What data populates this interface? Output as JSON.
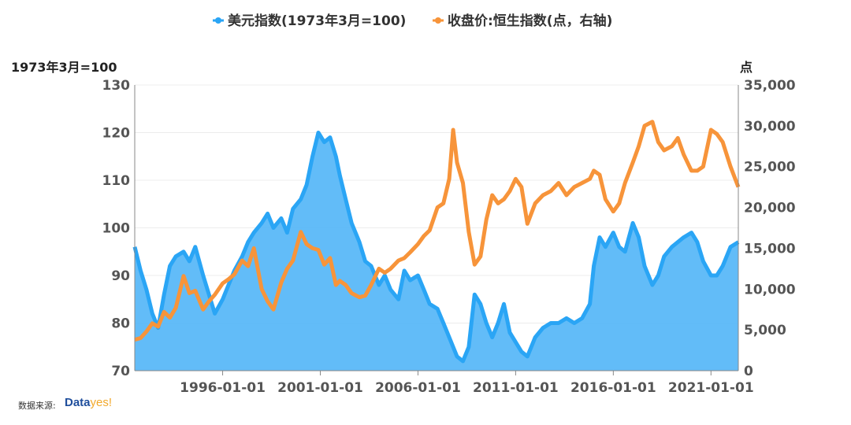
{
  "chart_data": {
    "type": "line",
    "legend": [
      {
        "name": "美元指数(1973年3月=100)",
        "color": "#2aa5f5",
        "axis": "left"
      },
      {
        "name": "收盘价:恒生指数(点，右轴)",
        "color": "#f7943a",
        "axis": "right"
      }
    ],
    "left_axis": {
      "unit": "1973年3月=100",
      "ylim": [
        70,
        130
      ],
      "ticks": [
        "70",
        "80",
        "90",
        "100",
        "110",
        "120",
        "130"
      ]
    },
    "right_axis": {
      "unit": "点",
      "ylim": [
        0,
        35000
      ],
      "ticks": [
        "0",
        "5,000",
        "10,000",
        "15,000",
        "20,000",
        "25,000",
        "30,000",
        "35,000"
      ]
    },
    "x_axis": {
      "range": [
        1991.5,
        2022.4
      ],
      "tick_labels": [
        "1996-01-01",
        "2001-01-01",
        "2006-01-01",
        "2011-01-01",
        "2016-01-01",
        "2021-01-01"
      ],
      "tick_years": [
        1996,
        2001,
        2006,
        2011,
        2016,
        2021
      ]
    },
    "series": [
      {
        "name": "美元指数(1973年3月=100)",
        "type": "area",
        "x": [
          1991.5,
          1991.8,
          1992.1,
          1992.4,
          1992.7,
          1993.0,
          1993.3,
          1993.6,
          1994.0,
          1994.3,
          1994.6,
          1995.0,
          1995.3,
          1995.6,
          1996.0,
          1996.3,
          1996.6,
          1997.0,
          1997.3,
          1997.6,
          1998.0,
          1998.3,
          1998.6,
          1999.0,
          1999.3,
          1999.6,
          2000.0,
          2000.3,
          2000.6,
          2000.9,
          2001.2,
          2001.5,
          2001.8,
          2002.0,
          2002.3,
          2002.6,
          2003.0,
          2003.3,
          2003.6,
          2004.0,
          2004.3,
          2004.6,
          2005.0,
          2005.3,
          2005.6,
          2006.0,
          2006.3,
          2006.6,
          2007.0,
          2007.3,
          2007.6,
          2008.0,
          2008.3,
          2008.6,
          2008.9,
          2009.2,
          2009.5,
          2009.8,
          2010.1,
          2010.4,
          2010.7,
          2011.0,
          2011.3,
          2011.6,
          2012.0,
          2012.4,
          2012.8,
          2013.2,
          2013.6,
          2014.0,
          2014.4,
          2014.8,
          2015.0,
          2015.3,
          2015.6,
          2016.0,
          2016.3,
          2016.6,
          2017.0,
          2017.3,
          2017.6,
          2018.0,
          2018.3,
          2018.6,
          2019.0,
          2019.3,
          2019.6,
          2020.0,
          2020.3,
          2020.6,
          2021.0,
          2021.3,
          2021.6,
          2022.0,
          2022.4
        ],
        "values": [
          96,
          91,
          87,
          82,
          79,
          86,
          92,
          94,
          95,
          93,
          96,
          90,
          86,
          82,
          85,
          88,
          91,
          94,
          97,
          99,
          101,
          103,
          100,
          102,
          99,
          104,
          106,
          109,
          115,
          120,
          118,
          119,
          115,
          111,
          106,
          101,
          97,
          93,
          92,
          88,
          90,
          87,
          85,
          91,
          89,
          90,
          87,
          84,
          83,
          80,
          77,
          73,
          72,
          75,
          86,
          84,
          80,
          77,
          80,
          84,
          78,
          76,
          74,
          73,
          77,
          79,
          80,
          80,
          81,
          80,
          81,
          84,
          92,
          98,
          96,
          99,
          96,
          95,
          101,
          98,
          92,
          88,
          90,
          94,
          96,
          97,
          98,
          99,
          97,
          93,
          90,
          90,
          92,
          96,
          97
        ]
      },
      {
        "name": "收盘价:恒生指数(点，右轴)",
        "type": "line",
        "x": [
          1991.5,
          1991.8,
          1992.1,
          1992.4,
          1992.7,
          1993.0,
          1993.3,
          1993.6,
          1994.0,
          1994.3,
          1994.6,
          1995.0,
          1995.3,
          1995.6,
          1996.0,
          1996.3,
          1996.6,
          1997.0,
          1997.3,
          1997.6,
          1998.0,
          1998.3,
          1998.6,
          1999.0,
          1999.3,
          1999.6,
          2000.0,
          2000.3,
          2000.6,
          2000.9,
          2001.2,
          2001.5,
          2001.8,
          2002.0,
          2002.3,
          2002.6,
          2003.0,
          2003.3,
          2003.6,
          2004.0,
          2004.3,
          2004.6,
          2005.0,
          2005.3,
          2005.6,
          2006.0,
          2006.3,
          2006.6,
          2007.0,
          2007.3,
          2007.6,
          2007.8,
          2008.0,
          2008.3,
          2008.6,
          2008.9,
          2009.2,
          2009.5,
          2009.8,
          2010.1,
          2010.4,
          2010.7,
          2011.0,
          2011.3,
          2011.6,
          2012.0,
          2012.4,
          2012.8,
          2013.2,
          2013.6,
          2014.0,
          2014.4,
          2014.8,
          2015.0,
          2015.3,
          2015.6,
          2016.0,
          2016.3,
          2016.6,
          2017.0,
          2017.3,
          2017.6,
          2018.0,
          2018.3,
          2018.6,
          2019.0,
          2019.3,
          2019.6,
          2020.0,
          2020.3,
          2020.6,
          2021.0,
          2021.3,
          2021.6,
          2022.0,
          2022.4
        ],
        "values": [
          3800,
          4000,
          4800,
          5800,
          5400,
          7200,
          6500,
          7700,
          11600,
          9500,
          9800,
          7500,
          8500,
          9300,
          10700,
          11200,
          11800,
          13500,
          12800,
          15000,
          10000,
          8500,
          7500,
          10800,
          12500,
          13500,
          17000,
          15500,
          15000,
          14800,
          13000,
          13800,
          10500,
          11000,
          10500,
          9500,
          9000,
          9200,
          10500,
          12500,
          12000,
          12500,
          13500,
          13800,
          14500,
          15500,
          16500,
          17200,
          20000,
          20500,
          23500,
          29500,
          25500,
          23000,
          17000,
          13000,
          14000,
          18500,
          21500,
          20500,
          21000,
          22000,
          23500,
          22500,
          18000,
          20500,
          21500,
          22000,
          23000,
          21500,
          22500,
          23000,
          23500,
          24500,
          24000,
          21000,
          19500,
          20500,
          23000,
          25500,
          27500,
          30000,
          30500,
          28000,
          27000,
          27500,
          28500,
          26500,
          24500,
          24500,
          25000,
          29500,
          29000,
          28000,
          25000,
          22500
        ]
      }
    ]
  },
  "source": {
    "label": "数据来源:",
    "logo_main": "Data",
    "logo_accent": "yes!"
  }
}
